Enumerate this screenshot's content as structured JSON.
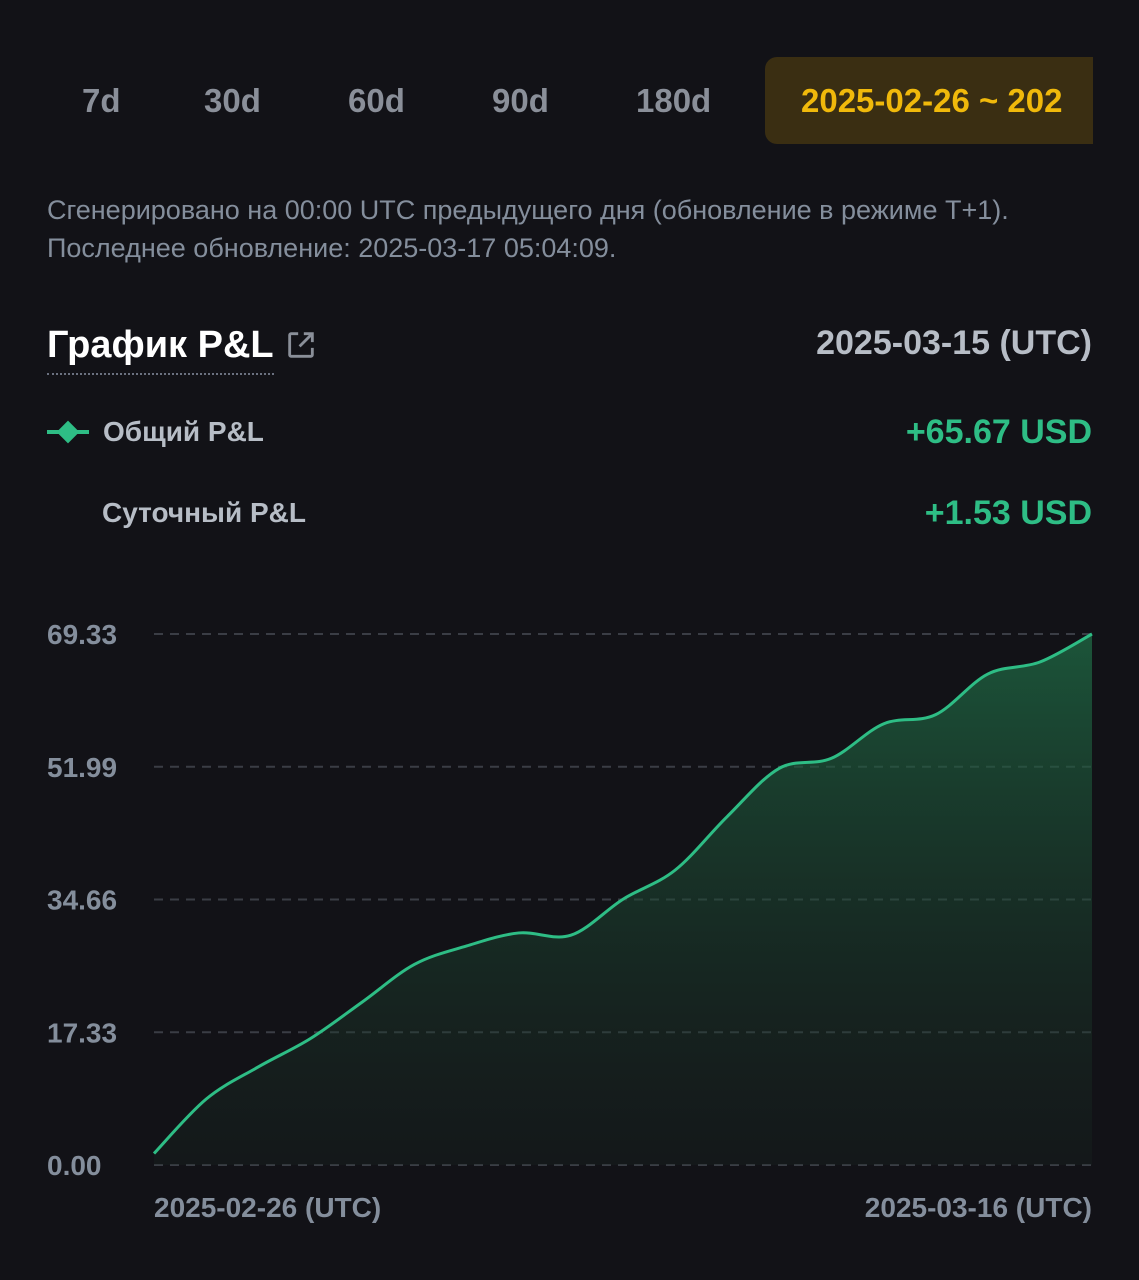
{
  "tabs": [
    {
      "label": "7d",
      "active": false
    },
    {
      "label": "30d",
      "active": false
    },
    {
      "label": "60d",
      "active": false
    },
    {
      "label": "90d",
      "active": false
    },
    {
      "label": "180d",
      "active": false
    },
    {
      "label": "2025-02-26 ~ 202",
      "active": true
    }
  ],
  "note": "Сгенерировано на 00:00 UTC предыдущего дня (обновление в режиме T+1). Последнее обновление: 2025-03-17 05:04:09.",
  "header": {
    "title": "График P&L",
    "selected_date": "2025-03-15 (UTC)"
  },
  "legend": {
    "total_label": "Общий P&L",
    "total_value": "+65.67 USD",
    "daily_label": "Суточный P&L",
    "daily_value": "+1.53 USD"
  },
  "colors": {
    "accent": "#f0b90b",
    "positive": "#2ebd85",
    "background": "#121217",
    "muted": "#848e9c"
  },
  "chart_data": {
    "type": "area",
    "y_ticks": [
      "69.33",
      "51.99",
      "34.66",
      "17.33",
      "0.00"
    ],
    "ylim": [
      0,
      69.33
    ],
    "x_labels": [
      "2025-02-26 (UTC)",
      "2025-03-16 (UTC)"
    ],
    "grid": true,
    "series": [
      {
        "x": [
          "2025-02-26",
          "2025-02-27",
          "2025-02-28",
          "2025-03-01",
          "2025-03-02",
          "2025-03-03",
          "2025-03-04",
          "2025-03-05",
          "2025-03-06",
          "2025-03-07",
          "2025-03-08",
          "2025-03-09",
          "2025-03-10",
          "2025-03-11",
          "2025-03-12",
          "2025-03-13",
          "2025-03-14",
          "2025-03-15",
          "2025-03-16"
        ],
        "values": [
          1.5,
          8.6,
          12.8,
          16.5,
          21.3,
          26.2,
          28.6,
          30.3,
          30.0,
          34.7,
          38.5,
          45.5,
          51.8,
          53.1,
          57.6,
          58.8,
          64.1,
          65.67,
          69.33
        ]
      }
    ]
  }
}
